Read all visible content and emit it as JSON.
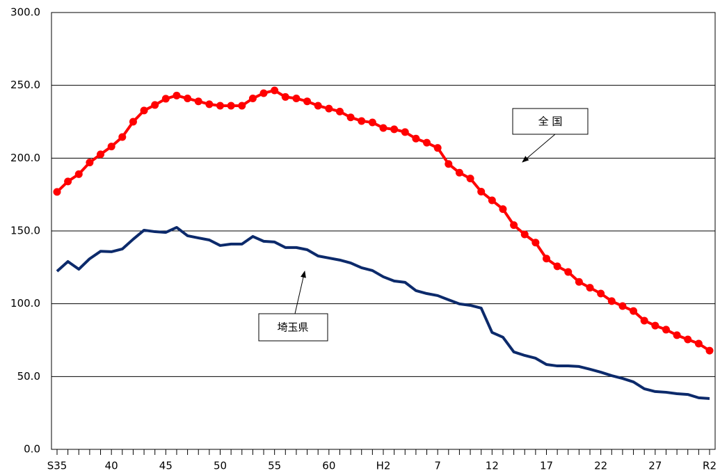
{
  "chart_data": {
    "type": "line",
    "categories": [
      "S35",
      null,
      null,
      null,
      null,
      "40",
      null,
      null,
      null,
      null,
      "45",
      null,
      null,
      null,
      null,
      "50",
      null,
      null,
      null,
      null,
      "55",
      null,
      null,
      null,
      null,
      "60",
      null,
      null,
      null,
      null,
      "H2",
      null,
      null,
      null,
      null,
      "7",
      null,
      null,
      null,
      null,
      "12",
      null,
      null,
      null,
      null,
      "17",
      null,
      null,
      null,
      null,
      "22",
      null,
      null,
      null,
      null,
      "27",
      null,
      null,
      null,
      null,
      "R2"
    ],
    "series": [
      {
        "name": "全 国",
        "color": "#ff0000",
        "markers": true,
        "values": [
          176.8,
          184,
          189,
          197,
          202.6,
          208,
          214.5,
          225,
          232.7,
          236.5,
          240.8,
          243,
          241,
          239,
          237,
          236,
          236,
          236,
          241,
          244.6,
          246.5,
          242,
          241,
          239,
          236,
          234,
          232,
          228,
          225.5,
          224.5,
          220.7,
          219.8,
          217.9,
          213.4,
          210.6,
          207,
          196,
          190,
          186,
          177,
          171,
          165,
          154,
          147.6,
          142,
          131,
          125.7,
          121.8,
          115,
          111,
          107,
          101.8,
          98.4,
          95,
          88.4,
          85,
          82.2,
          78.4,
          75.5,
          72.6,
          67.8
        ]
      },
      {
        "name": "埼玉県",
        "color": "#0c2a6b",
        "markers": false,
        "values": [
          122.3,
          129,
          123.7,
          130.9,
          136,
          135.7,
          137.6,
          144.3,
          150.5,
          149.5,
          149,
          152.4,
          146.7,
          145.2,
          143.8,
          140,
          141,
          141,
          146.2,
          142.9,
          142.4,
          138.6,
          138.6,
          137.1,
          132.8,
          131.4,
          130,
          128,
          124.7,
          122.8,
          118.5,
          115.6,
          114.7,
          109,
          107,
          105.6,
          102.7,
          99.9,
          98.9,
          97,
          80.3,
          77,
          66.9,
          64.5,
          62.6,
          58.3,
          57.3,
          57.3,
          56.9,
          55,
          53,
          50.6,
          48.7,
          46.3,
          41.6,
          39.7,
          39.2,
          38.2,
          37.7,
          35.4,
          34.9
        ]
      }
    ],
    "ylim": [
      0,
      300
    ],
    "yticks": [
      {
        "value": 0,
        "label": "0.0"
      },
      {
        "value": 50,
        "label": "50.0"
      },
      {
        "value": 100,
        "label": "100.0"
      },
      {
        "value": 150,
        "label": "150.0"
      },
      {
        "value": 200,
        "label": "200.0"
      },
      {
        "value": 250,
        "label": "250.0"
      },
      {
        "value": 300,
        "label": "300.0"
      }
    ],
    "grid": true
  }
}
